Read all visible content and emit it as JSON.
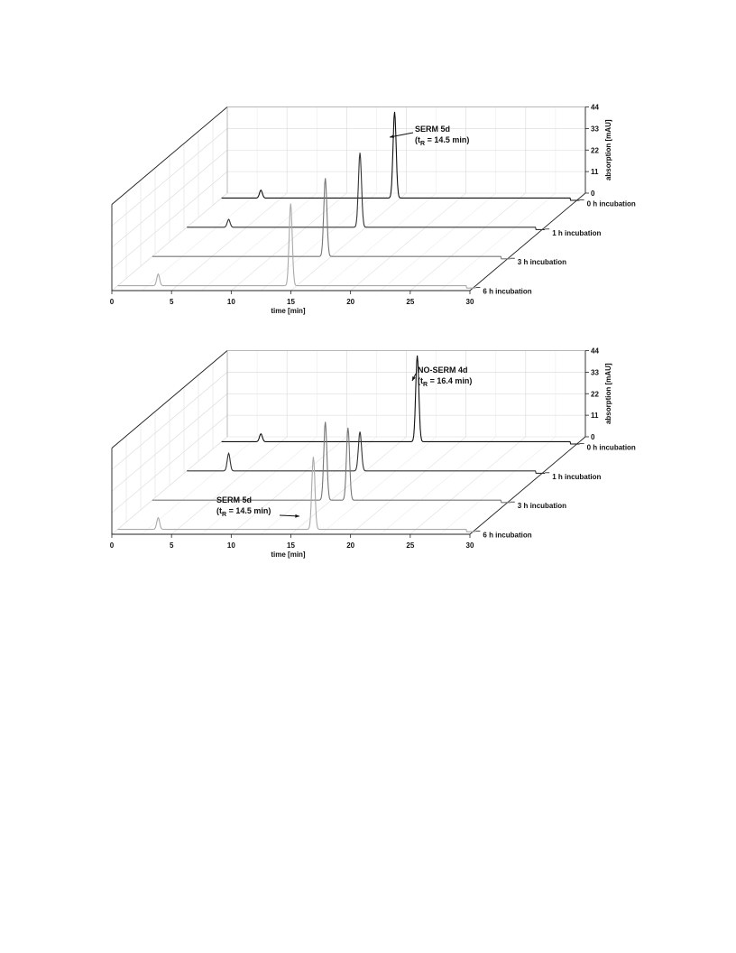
{
  "chart_data": [
    {
      "type": "line",
      "title": "",
      "xlabel": "time [min]",
      "ylabel": "absorption [mAU]",
      "xlim": [
        0,
        30
      ],
      "ylim": [
        0,
        44
      ],
      "xticks": [
        "0",
        "5",
        "10",
        "15",
        "20",
        "25",
        "30"
      ],
      "yticks": [
        "0",
        "11",
        "22",
        "33",
        "44"
      ],
      "grid": true,
      "series": [
        {
          "name": "0 h incubation",
          "peaks": [
            {
              "x": 3.3,
              "y": 4
            },
            {
              "x": 14.5,
              "y": 44
            }
          ]
        },
        {
          "name": "1 h incubation",
          "peaks": [
            {
              "x": 3.5,
              "y": 4
            },
            {
              "x": 14.5,
              "y": 38
            }
          ]
        },
        {
          "name": "3 h incubation",
          "peaks": [
            {
              "x": 14.5,
              "y": 40
            }
          ]
        },
        {
          "name": "6 h incubation",
          "peaks": [
            {
              "x": 3.4,
              "y": 6
            },
            {
              "x": 14.5,
              "y": 42
            }
          ]
        }
      ],
      "annotations": [
        {
          "line1": "SERM 5d",
          "t": "t",
          "sub": "R",
          "rest": " = 14.5 min)"
        }
      ]
    },
    {
      "type": "line",
      "title": "",
      "xlabel": "time [min]",
      "ylabel": "absorption [mAU]",
      "xlim": [
        0,
        30
      ],
      "ylim": [
        0,
        44
      ],
      "xticks": [
        "0",
        "5",
        "10",
        "15",
        "20",
        "25",
        "30"
      ],
      "yticks": [
        "0",
        "11",
        "22",
        "33",
        "44"
      ],
      "grid": true,
      "series": [
        {
          "name": "0 h incubation",
          "peaks": [
            {
              "x": 3.3,
              "y": 4
            },
            {
              "x": 16.4,
              "y": 44
            }
          ]
        },
        {
          "name": "1 h incubation",
          "peaks": [
            {
              "x": 3.5,
              "y": 9
            },
            {
              "x": 14.5,
              "y": 20
            }
          ]
        },
        {
          "name": "3 h incubation",
          "peaks": [
            {
              "x": 14.5,
              "y": 40
            },
            {
              "x": 16.4,
              "y": 37
            }
          ]
        },
        {
          "name": "6 h incubation",
          "peaks": [
            {
              "x": 3.4,
              "y": 6
            },
            {
              "x": 16.4,
              "y": 37
            }
          ]
        }
      ],
      "annotations": [
        {
          "line1": "NO-SERM 4d",
          "t": "t",
          "sub": "R",
          "rest": " = 16.4 min)"
        },
        {
          "line1": "SERM 5d",
          "t": "t",
          "sub": "R",
          "rest": " = 14.5 min)"
        }
      ]
    }
  ]
}
